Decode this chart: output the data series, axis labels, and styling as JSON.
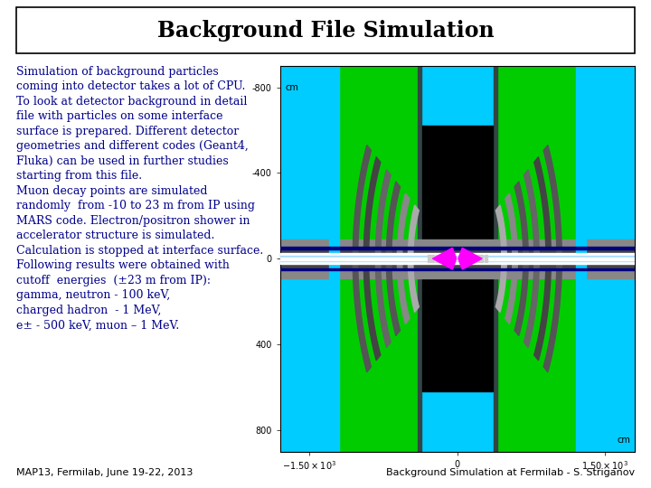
{
  "title": "Background File Simulation",
  "title_fontsize": 17,
  "bg_color": "#ffffff",
  "title_box_edge": "#000000",
  "text_color": "#00008B",
  "body_text": "Simulation of background particles\ncoming into detector takes a lot of CPU.\nTo look at detector background in detail\nfile with particles on some interface\nsurface is prepared. Different detector\ngeometries and different codes (Geant4,\nFluka) can be used in further studies\nstarting from this file.\nMuon decay points are simulated\nrandomly  from -10 to 23 m from IP using\nMARS code. Electron/positron shower in\naccelerator structure is simulated.\nCalculation is stopped at interface surface.\nFollowing results were obtained with\ncutoff  energies  (±23 m from IP):\ngamma, neutron - 100 keV,\ncharged hadron  - 1 MeV,\ne± - 500 keV, muon – 1 MeV.",
  "body_fontsize": 9.0,
  "footer_left": "MAP13, Fermilab, June 19-22, 2013",
  "footer_right": "Background Simulation at Fermilab - S. Striganov",
  "footer_fontsize": 8,
  "footer_color": "#000000",
  "green": "#00cc00",
  "cyan": "#00ccff",
  "gray": "#888888",
  "dark_gray": "#555555",
  "black": "#000000",
  "white": "#ffffff",
  "magenta": "#ff00ff",
  "navy": "#000080",
  "light_cyan": "#aaffff"
}
